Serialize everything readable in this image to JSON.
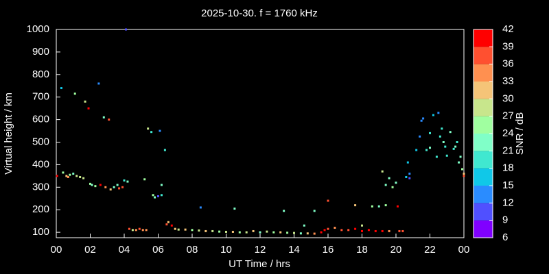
{
  "chart_data": {
    "type": "scatter",
    "title": "2025-10-30. f = 1760 kHz",
    "xlabel": "UT Time / hrs",
    "ylabel": "Virtual height / km",
    "xlim": [
      0,
      24
    ],
    "xticks": [
      {
        "value": 0,
        "label": "00"
      },
      {
        "value": 2,
        "label": "02"
      },
      {
        "value": 4,
        "label": "04"
      },
      {
        "value": 6,
        "label": "06"
      },
      {
        "value": 8,
        "label": "08"
      },
      10,
      12,
      14,
      16,
      18,
      20,
      22,
      {
        "value": 24,
        "label": "00"
      }
    ],
    "ylim": [
      76,
      1000
    ],
    "yticks": [
      100,
      200,
      300,
      400,
      500,
      600,
      700,
      800,
      900,
      1000
    ],
    "x": [
      0.05,
      0.3,
      0.4,
      0.6,
      0.7,
      0.8,
      1.0,
      1.1,
      1.2,
      1.4,
      1.6,
      1.7,
      1.9,
      2.0,
      2.1,
      2.3,
      2.5,
      2.6,
      2.8,
      2.9,
      3.1,
      3.2,
      3.4,
      3.6,
      3.7,
      3.9,
      4.0,
      4.1,
      4.2,
      4.3,
      4.5,
      4.7,
      4.9,
      5.1,
      5.2,
      5.3,
      5.4,
      5.6,
      5.7,
      5.8,
      6.0,
      6.1,
      6.2,
      6.2,
      6.4,
      6.5,
      6.6,
      6.8,
      7.0,
      7.2,
      7.6,
      8.0,
      8.4,
      8.5,
      8.8,
      9.2,
      9.6,
      10.0,
      10.4,
      10.5,
      10.8,
      11.2,
      11.6,
      12.0,
      12.4,
      12.8,
      13.2,
      13.4,
      13.6,
      14.0,
      14.4,
      14.6,
      14.8,
      15.2,
      15.2,
      15.6,
      15.8,
      16.0,
      16.0,
      16.4,
      16.8,
      17.2,
      17.6,
      17.6,
      18.0,
      18.0,
      18.4,
      18.6,
      18.8,
      19.0,
      19.2,
      19.2,
      19.4,
      19.4,
      19.6,
      19.6,
      19.8,
      20.0,
      20.1,
      20.2,
      20.4,
      20.6,
      20.7,
      20.8,
      20.8,
      21.2,
      21.4,
      21.5,
      21.6,
      21.8,
      22.0,
      22.0,
      22.2,
      22.4,
      22.5,
      22.6,
      22.7,
      22.8,
      22.9,
      23.0,
      23.2,
      23.4,
      23.5,
      23.6,
      23.7,
      23.8,
      23.9,
      24.0,
      24.0
    ],
    "y": [
      350,
      740,
      365,
      350,
      345,
      355,
      360,
      715,
      350,
      345,
      340,
      680,
      650,
      315,
      310,
      305,
      760,
      310,
      610,
      300,
      600,
      290,
      300,
      310,
      295,
      300,
      330,
      1000,
      325,
      115,
      110,
      110,
      115,
      110,
      335,
      110,
      560,
      545,
      265,
      255,
      260,
      550,
      310,
      265,
      465,
      135,
      145,
      130,
      115,
      112,
      112,
      110,
      108,
      210,
      105,
      105,
      103,
      102,
      102,
      205,
      100,
      100,
      105,
      100,
      103,
      100,
      100,
      195,
      98,
      97,
      95,
      130,
      95,
      195,
      94,
      100,
      110,
      115,
      240,
      120,
      110,
      110,
      115,
      220,
      130,
      105,
      110,
      215,
      105,
      215,
      370,
      105,
      310,
      220,
      340,
      105,
      300,
      320,
      215,
      105,
      105,
      345,
      410,
      360,
      340,
      465,
      525,
      595,
      605,
      465,
      540,
      475,
      620,
      435,
      630,
      525,
      560,
      500,
      480,
      440,
      545,
      470,
      480,
      500,
      410,
      435,
      380,
      360,
      350
    ],
    "snr": [
      40,
      15,
      24,
      30,
      33,
      24,
      21,
      24,
      27,
      27,
      27,
      27,
      39,
      24,
      21,
      24,
      12,
      39,
      21,
      33,
      36,
      30,
      21,
      21,
      36,
      36,
      18,
      9,
      21,
      36,
      27,
      33,
      36,
      33,
      24,
      33,
      27,
      18,
      24,
      21,
      9,
      12,
      21,
      18,
      18,
      36,
      30,
      39,
      30,
      27,
      30,
      24,
      27,
      12,
      30,
      27,
      24,
      27,
      30,
      21,
      24,
      27,
      30,
      21,
      27,
      24,
      30,
      21,
      24,
      27,
      21,
      21,
      30,
      21,
      33,
      39,
      39,
      36,
      36,
      33,
      36,
      36,
      39,
      30,
      27,
      39,
      39,
      24,
      39,
      21,
      27,
      39,
      21,
      24,
      21,
      33,
      24,
      21,
      39,
      36,
      36,
      15,
      15,
      12,
      9,
      15,
      12,
      12,
      12,
      18,
      18,
      21,
      15,
      18,
      12,
      18,
      18,
      21,
      18,
      18,
      21,
      18,
      21,
      18,
      21,
      21,
      24,
      30,
      36
    ],
    "colorbar": {
      "label": "SNR / dB",
      "lim": [
        6,
        42
      ],
      "ticks": [
        6,
        9,
        12,
        15,
        18,
        21,
        24,
        27,
        30,
        33,
        36,
        39,
        42
      ],
      "colors": [
        "#8000ff",
        "#5050ff",
        "#2a8cff",
        "#10c8e8",
        "#40e8d0",
        "#80ffc8",
        "#a0ffa0",
        "#c8e68c",
        "#f5c478",
        "#ff9050",
        "#ff5030",
        "#ff0000"
      ]
    }
  }
}
